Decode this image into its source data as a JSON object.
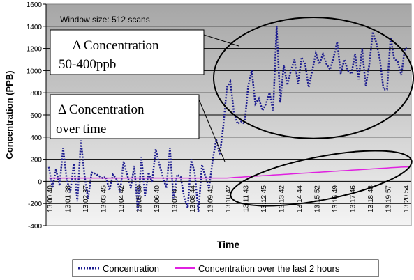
{
  "chart_data": {
    "type": "line",
    "title": "",
    "annotation": "Window size: 512 scans",
    "xlabel": "Time",
    "ylabel": "Concentration (PPB)",
    "ylim": [
      -400,
      1600
    ],
    "yticks": [
      -400,
      -200,
      0,
      200,
      400,
      600,
      800,
      1000,
      1200,
      1400,
      1600
    ],
    "grid": true,
    "legend_position": "bottom",
    "x_tick_labels": [
      "13:00:40",
      "13:01:38",
      "13:02:37",
      "13:03:45",
      "13:04:42",
      "13:05:39",
      "13:06:40",
      "13:07:47",
      "13:08:44",
      "13:09:41",
      "13:10:42",
      "13:11:43",
      "13:12:45",
      "13:13:42",
      "13:14:44",
      "13:15:52",
      "13:16:49",
      "13:17:46",
      "13:18:48",
      "13:19:57",
      "13:20:54"
    ],
    "series": [
      {
        "name": "Concentration",
        "color": "#1c1c8f",
        "style": "dotted",
        "values": [
          130,
          -60,
          110,
          -40,
          300,
          20,
          -100,
          160,
          -180,
          370,
          60,
          -160,
          80,
          70,
          50,
          30,
          40,
          -80,
          60,
          20,
          -100,
          180,
          60,
          -60,
          140,
          -270,
          220,
          -130,
          80,
          -10,
          290,
          160,
          40,
          -60,
          300,
          -150,
          60,
          40,
          -140,
          -240,
          200,
          70,
          -280,
          150,
          40,
          -60,
          190,
          380,
          240,
          500,
          850,
          900,
          620,
          520,
          540,
          520,
          860,
          1000,
          700,
          750,
          640,
          700,
          800,
          640,
          1400,
          710,
          1050,
          870,
          1000,
          1100,
          880,
          1120,
          1060,
          850,
          1000,
          1160,
          1060,
          1150,
          1060,
          1010,
          1120,
          1260,
          970,
          1100,
          1000,
          970,
          1150,
          920,
          1200,
          860,
          1050,
          1350,
          1250,
          1100,
          830,
          830,
          1300,
          1110,
          1080,
          960,
          1200,
          1200
        ]
      },
      {
        "name": "Concentration over the last 2 hours",
        "color": "#e020e0",
        "style": "solid",
        "values": [
          30,
          30,
          30,
          30,
          30,
          30,
          30,
          30,
          30,
          30,
          30,
          30,
          30,
          30,
          30,
          30,
          30,
          30,
          30,
          30,
          30,
          30,
          30,
          30,
          30,
          30,
          30,
          30,
          30,
          30,
          30,
          30,
          30,
          30,
          30,
          30,
          30,
          30,
          30,
          30,
          30,
          30,
          30,
          30,
          30,
          30,
          30,
          30,
          30,
          30,
          30,
          33,
          35,
          37,
          39,
          41,
          43,
          45,
          47,
          49,
          51,
          53,
          55,
          57,
          59,
          61,
          63,
          65,
          67,
          69,
          71,
          73,
          75,
          77,
          79,
          81,
          83,
          85,
          87,
          89,
          91,
          93,
          95,
          97,
          99,
          101,
          103,
          105,
          107,
          109,
          111,
          113,
          115,
          117,
          119,
          121,
          123,
          125,
          127,
          129,
          130,
          131
        ]
      }
    ],
    "callouts": [
      {
        "lines": [
          "Δ Concentration",
          "50-400ppb"
        ]
      },
      {
        "lines": [
          "Δ Concentration",
          "over time"
        ]
      }
    ]
  }
}
